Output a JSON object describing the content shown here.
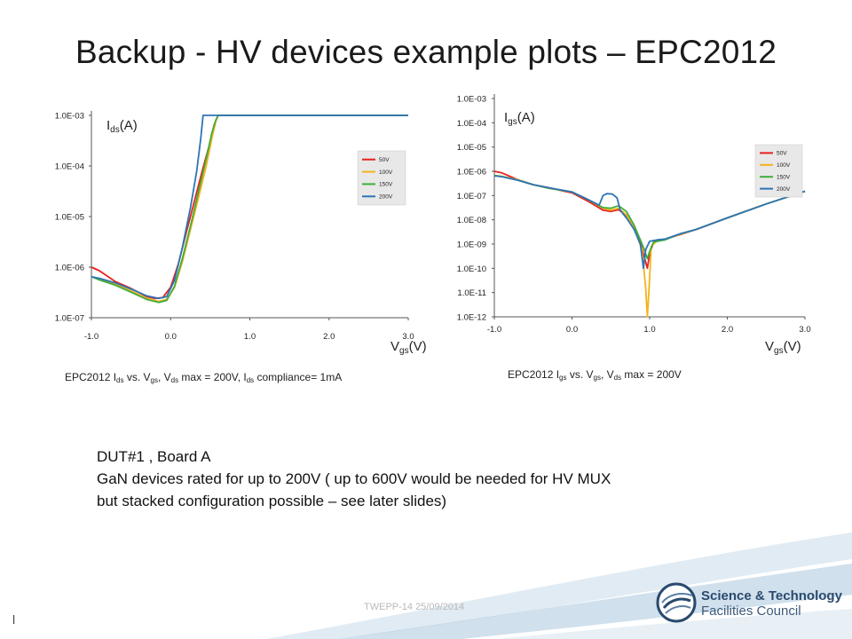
{
  "title": "Backup - HV devices example plots – EPC2012",
  "charts": [
    {
      "ylabel_main": "I",
      "ylabel_sub": "ds",
      "ylabel_unit": "(A)",
      "xlabel_main": "V",
      "xlabel_sub": "gs",
      "xlabel_unit": "(V)",
      "caption": {
        "p1": "EPC2012 I",
        "s1": "ds",
        "p2": " vs. V",
        "s2": "gs",
        "p3": ", V",
        "s3": "ds",
        "p4": " max = 200V, I",
        "s4": "ds",
        "p5": " compliance= 1mA"
      }
    },
    {
      "ylabel_main": "I",
      "ylabel_sub": "gs",
      "ylabel_unit": "(A)",
      "xlabel_main": "V",
      "xlabel_sub": "gs",
      "xlabel_unit": "(V)",
      "caption": {
        "p1": "EPC2012 I",
        "s1": "gs",
        "p2": " vs. V",
        "s2": "gs",
        "p3": ", V",
        "s3": "ds",
        "p4": " max = 200V"
      }
    }
  ],
  "chart_data": [
    {
      "type": "line",
      "log_y": true,
      "xlim": [
        -1.0,
        3.0
      ],
      "ylim": [
        1e-07,
        0.001
      ],
      "x_ticks": [
        "-1.0",
        "0.0",
        "1.0",
        "2.0",
        "3.0"
      ],
      "y_ticks": [
        "1.0E-03",
        "1.0E-04",
        "1.0E-05",
        "1.0E-06",
        "1.0E-07"
      ],
      "legend_position": "right",
      "series": [
        {
          "name": "50V",
          "color": "#e8201e",
          "points": [
            [
              -1.0,
              1e-06
            ],
            [
              -0.9,
              8.5e-07
            ],
            [
              -0.7,
              5.2e-07
            ],
            [
              -0.5,
              3.8e-07
            ],
            [
              -0.3,
              2.6e-07
            ],
            [
              -0.2,
              2.4e-07
            ],
            [
              -0.1,
              2.5e-07
            ],
            [
              0.0,
              4e-07
            ],
            [
              0.1,
              1.2e-06
            ],
            [
              0.2,
              5e-06
            ],
            [
              0.3,
              2e-05
            ],
            [
              0.4,
              8e-05
            ],
            [
              0.5,
              0.0003
            ],
            [
              0.55,
              0.00065
            ],
            [
              0.6,
              0.001
            ],
            [
              3.0,
              0.001
            ]
          ]
        },
        {
          "name": "100V",
          "color": "#f5b21b",
          "points": [
            [
              -1.0,
              6.5e-07
            ],
            [
              -0.9,
              5.8e-07
            ],
            [
              -0.7,
              4.6e-07
            ],
            [
              -0.5,
              3.4e-07
            ],
            [
              -0.3,
              2.4e-07
            ],
            [
              -0.15,
              2.1e-07
            ],
            [
              -0.05,
              2.3e-07
            ],
            [
              0.05,
              4e-07
            ],
            [
              0.15,
              1.3e-06
            ],
            [
              0.25,
              5.5e-06
            ],
            [
              0.35,
              2.3e-05
            ],
            [
              0.45,
              0.0001
            ],
            [
              0.52,
              0.00035
            ],
            [
              0.57,
              0.00075
            ],
            [
              0.6,
              0.001
            ],
            [
              3.0,
              0.001
            ]
          ]
        },
        {
          "name": "150V",
          "color": "#3fae3b",
          "points": [
            [
              -1.0,
              6.5e-07
            ],
            [
              -0.9,
              5.6e-07
            ],
            [
              -0.7,
              4.4e-07
            ],
            [
              -0.5,
              3.2e-07
            ],
            [
              -0.3,
              2.3e-07
            ],
            [
              -0.15,
              2e-07
            ],
            [
              -0.05,
              2.2e-07
            ],
            [
              0.05,
              4.2e-07
            ],
            [
              0.15,
              1.5e-06
            ],
            [
              0.25,
              6.5e-06
            ],
            [
              0.35,
              3e-05
            ],
            [
              0.45,
              0.00014
            ],
            [
              0.52,
              0.00045
            ],
            [
              0.57,
              0.0008
            ],
            [
              0.6,
              0.001
            ],
            [
              3.0,
              0.001
            ]
          ]
        },
        {
          "name": "200V",
          "color": "#2e74b5",
          "points": [
            [
              -1.0,
              6.5e-07
            ],
            [
              -0.9,
              6e-07
            ],
            [
              -0.7,
              4.9e-07
            ],
            [
              -0.5,
              3.7e-07
            ],
            [
              -0.3,
              2.7e-07
            ],
            [
              -0.15,
              2.4e-07
            ],
            [
              -0.05,
              2.6e-07
            ],
            [
              0.05,
              5.5e-07
            ],
            [
              0.15,
              2.5e-06
            ],
            [
              0.25,
              1.5e-05
            ],
            [
              0.33,
              8e-05
            ],
            [
              0.38,
              0.00035
            ],
            [
              0.41,
              0.001
            ],
            [
              3.0,
              0.001
            ]
          ]
        }
      ]
    },
    {
      "type": "line",
      "log_y": true,
      "xlim": [
        -1.0,
        3.0
      ],
      "ylim": [
        1e-12,
        0.001
      ],
      "x_ticks": [
        "-1.0",
        "0.0",
        "1.0",
        "2.0",
        "3.0"
      ],
      "y_ticks": [
        "1.0E-03",
        "1.0E-04",
        "1.0E-05",
        "1.0E-06",
        "1.0E-07",
        "1.0E-08",
        "1.0E-09",
        "1.0E-10",
        "1.0E-11",
        "1.0E-12"
      ],
      "legend_position": "right",
      "series": [
        {
          "name": "50V",
          "color": "#e8201e",
          "points": [
            [
              -1.0,
              1e-06
            ],
            [
              -0.9,
              8.5e-07
            ],
            [
              -0.7,
              4.5e-07
            ],
            [
              -0.5,
              2.8e-07
            ],
            [
              -0.3,
              2.1e-07
            ],
            [
              -0.1,
              1.5e-07
            ],
            [
              0.0,
              1.3e-07
            ],
            [
              0.2,
              6e-08
            ],
            [
              0.4,
              2.5e-08
            ],
            [
              0.5,
              2.2e-08
            ],
            [
              0.6,
              2.6e-08
            ],
            [
              0.7,
              1.5e-08
            ],
            [
              0.8,
              5e-09
            ],
            [
              0.88,
              1.2e-09
            ],
            [
              0.93,
              3e-10
            ],
            [
              0.97,
              1e-10
            ],
            [
              1.0,
              4e-10
            ],
            [
              1.05,
              1.2e-09
            ],
            [
              1.2,
              1.6e-09
            ],
            [
              1.4,
              2.5e-09
            ],
            [
              1.6,
              4e-09
            ],
            [
              2.0,
              1.2e-08
            ],
            [
              2.5,
              4.5e-08
            ],
            [
              3.0,
              1.5e-07
            ]
          ]
        },
        {
          "name": "100V",
          "color": "#f5b21b",
          "points": [
            [
              -1.0,
              6.8e-07
            ],
            [
              -0.9,
              6.2e-07
            ],
            [
              -0.7,
              4.5e-07
            ],
            [
              -0.5,
              2.8e-07
            ],
            [
              -0.3,
              2e-07
            ],
            [
              -0.1,
              1.6e-07
            ],
            [
              0.0,
              1.4e-07
            ],
            [
              0.2,
              7e-08
            ],
            [
              0.4,
              3e-08
            ],
            [
              0.5,
              2.5e-08
            ],
            [
              0.6,
              3e-08
            ],
            [
              0.7,
              1.6e-08
            ],
            [
              0.8,
              4.5e-09
            ],
            [
              0.9,
              6e-10
            ],
            [
              0.95,
              1.5e-11
            ],
            [
              0.97,
              1e-12
            ],
            [
              0.99,
              1e-11
            ],
            [
              1.02,
              8e-10
            ],
            [
              1.1,
              1.4e-09
            ],
            [
              1.2,
              1.6e-09
            ],
            [
              1.4,
              2.6e-09
            ],
            [
              1.6,
              4e-09
            ],
            [
              2.0,
              1.2e-08
            ],
            [
              2.5,
              4.5e-08
            ],
            [
              3.0,
              1.5e-07
            ]
          ]
        },
        {
          "name": "150V",
          "color": "#3fae3b",
          "points": [
            [
              -1.0,
              6.8e-07
            ],
            [
              -0.9,
              6e-07
            ],
            [
              -0.7,
              4.3e-07
            ],
            [
              -0.5,
              2.8e-07
            ],
            [
              -0.3,
              2e-07
            ],
            [
              -0.1,
              1.6e-07
            ],
            [
              0.0,
              1.4e-07
            ],
            [
              0.2,
              7e-08
            ],
            [
              0.4,
              3.2e-08
            ],
            [
              0.5,
              3e-08
            ],
            [
              0.6,
              3.8e-08
            ],
            [
              0.7,
              2.2e-08
            ],
            [
              0.8,
              6e-09
            ],
            [
              0.88,
              1.5e-09
            ],
            [
              0.93,
              6e-10
            ],
            [
              0.97,
              2.5e-10
            ],
            [
              1.0,
              5e-10
            ],
            [
              1.05,
              1.2e-09
            ],
            [
              1.2,
              1.5e-09
            ],
            [
              1.4,
              2.7e-09
            ],
            [
              1.6,
              4e-09
            ],
            [
              2.0,
              1.2e-08
            ],
            [
              2.5,
              4.5e-08
            ],
            [
              3.0,
              1.5e-07
            ]
          ]
        },
        {
          "name": "200V",
          "color": "#2e74b5",
          "points": [
            [
              -1.0,
              6.5e-07
            ],
            [
              -0.9,
              6e-07
            ],
            [
              -0.7,
              4.3e-07
            ],
            [
              -0.5,
              2.8e-07
            ],
            [
              -0.3,
              2.1e-07
            ],
            [
              -0.1,
              1.6e-07
            ],
            [
              0.0,
              1.4e-07
            ],
            [
              0.2,
              7e-08
            ],
            [
              0.35,
              4e-08
            ],
            [
              0.4,
              1e-07
            ],
            [
              0.45,
              1.2e-07
            ],
            [
              0.52,
              1.15e-07
            ],
            [
              0.58,
              8e-08
            ],
            [
              0.62,
              2.5e-08
            ],
            [
              0.7,
              1.2e-08
            ],
            [
              0.8,
              4e-09
            ],
            [
              0.88,
              1e-09
            ],
            [
              0.92,
              1e-10
            ],
            [
              0.95,
              6e-10
            ],
            [
              1.0,
              1.3e-09
            ],
            [
              1.1,
              1.5e-09
            ],
            [
              1.2,
              1.6e-09
            ],
            [
              1.4,
              2.7e-09
            ],
            [
              1.6,
              4e-09
            ],
            [
              2.0,
              1.2e-08
            ],
            [
              2.5,
              4.5e-08
            ],
            [
              3.0,
              1.5e-07
            ]
          ]
        }
      ]
    }
  ],
  "body": {
    "line1": "DUT#1 , Board A",
    "line2": "GaN devices rated for up to 200V ( up to 600V would be needed for HV MUX",
    "line3": " but stacked configuration possible – see later slides)"
  },
  "footer": "TWEPP-14 25/09/2014",
  "footer_left": "l",
  "logo": {
    "line1": "Science & Technology",
    "line2": "Facilities Council"
  }
}
